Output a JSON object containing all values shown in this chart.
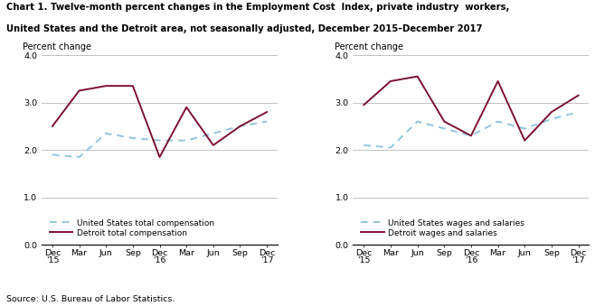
{
  "title_line1": "Chart 1. Twelve-month percent changes in the Employment Cost  Index, private industry  workers,",
  "title_line2": "United States and the Detroit area, not seasonally adjusted, December 2015–December 2017",
  "source": "Source: U.S. Bureau of Labor Statistics.",
  "x_labels": [
    "Dec\n'15",
    "Mar",
    "Jun",
    "Sep",
    "Dec\n'16",
    "Mar",
    "Jun",
    "Sep",
    "Dec\n'17"
  ],
  "ylim": [
    0.0,
    4.0
  ],
  "yticks": [
    0.0,
    1.0,
    2.0,
    3.0,
    4.0
  ],
  "ylabel": "Percent change",
  "chart1": {
    "us_total": [
      1.9,
      1.85,
      2.35,
      2.25,
      2.2,
      2.2,
      2.35,
      2.5,
      2.6
    ],
    "detroit_total": [
      2.5,
      3.25,
      3.35,
      3.35,
      1.85,
      2.9,
      2.1,
      2.5,
      2.8
    ],
    "legend1": "United States total compensation",
    "legend2": "Detroit total compensation"
  },
  "chart2": {
    "us_wages": [
      2.1,
      2.05,
      2.6,
      2.45,
      2.3,
      2.6,
      2.45,
      2.65,
      2.8
    ],
    "detroit_wages": [
      2.95,
      3.45,
      3.55,
      2.6,
      2.3,
      3.45,
      2.2,
      2.8,
      3.15
    ],
    "legend1": "United States wages and salaries",
    "legend2": "Detroit wages and salaries"
  },
  "us_color": "#92C5DE",
  "detroit_color": "#7B1030",
  "linewidth": 1.4,
  "title_fontsize": 7.2,
  "label_fontsize": 7.0,
  "tick_fontsize": 6.8,
  "legend_fontsize": 6.5,
  "source_fontsize": 6.8
}
